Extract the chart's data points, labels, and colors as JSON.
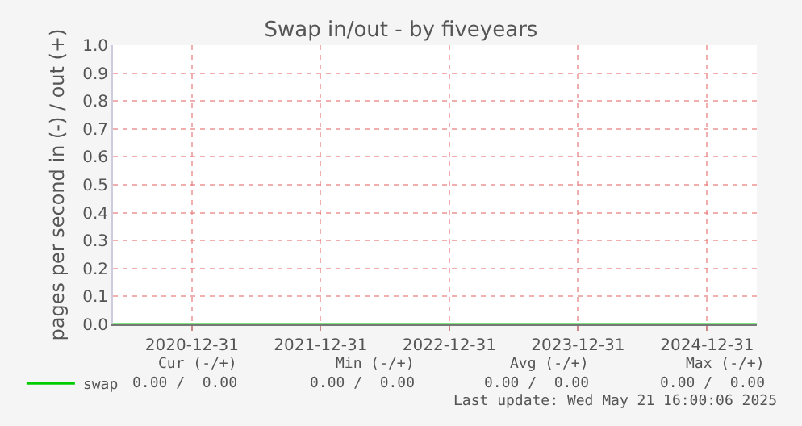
{
  "chart_data": {
    "type": "line",
    "title": "Swap in/out - by fiveyears",
    "ylabel": "pages per second in (-) / out (+)",
    "x": [
      "2020-05-21",
      "2025-05-21"
    ],
    "series": [
      {
        "name": "swap",
        "color": "#00cc00",
        "values": [
          0,
          0
        ]
      }
    ],
    "xlim": [
      "2020-05-21",
      "2025-05-21"
    ],
    "xticks": [
      "2020-12-31",
      "2021-12-31",
      "2022-12-31",
      "2023-12-31",
      "2024-12-31"
    ],
    "ylim": [
      0,
      1
    ],
    "yticks": [
      {
        "value": 0,
        "label": "0.0"
      },
      {
        "value": 0.1,
        "label": "0.1"
      },
      {
        "value": 0.2,
        "label": "0.2"
      },
      {
        "value": 0.3,
        "label": "0.3"
      },
      {
        "value": 0.4,
        "label": "0.4"
      },
      {
        "value": 0.5,
        "label": "0.5"
      },
      {
        "value": 0.6,
        "label": "0.6"
      },
      {
        "value": 0.7,
        "label": "0.7"
      },
      {
        "value": 0.8,
        "label": "0.8"
      },
      {
        "value": 0.9,
        "label": "0.9"
      },
      {
        "value": 1,
        "label": "1.0"
      }
    ],
    "grid": true,
    "legend": "bottom left",
    "marker": "none",
    "line_style": "solid",
    "annotations": [
      "Cur (-/+)",
      "Min (-/+)",
      "Avg (-/+)",
      "Max (-/+)",
      "0.00 /  0.00",
      "0.00 /  0.00",
      "0.00 /  0.00",
      "0.00 /  0.00",
      "Last update: Wed May 21 16:00:06 2025"
    ]
  }
}
